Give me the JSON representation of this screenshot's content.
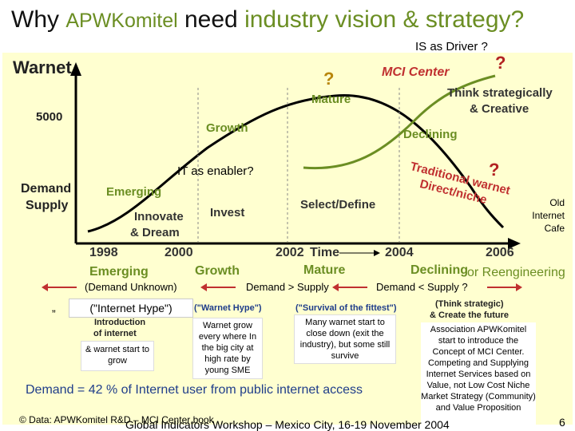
{
  "title": {
    "part1": "Why ",
    "part2": "APWKomitel",
    "part3": " need ",
    "part4": "industry vision & strategy?"
  },
  "top_right": "IS as Driver ?",
  "question_marks": [
    "?",
    "?",
    "?"
  ],
  "chart": {
    "y_title": "Warnet",
    "y_value": "5000",
    "y_axis_label1": "Demand",
    "y_axis_label2": "Supply",
    "x_ticks": [
      "1998",
      "2000",
      "2002",
      "2004",
      "2006"
    ],
    "x_label": "Time",
    "mci_center": "MCI Center",
    "mature": "Mature",
    "growth": "Growth",
    "emerging": "Emerging",
    "declining": "Declining",
    "think1": "Think strategically",
    "think2": "& Creative",
    "traditional1": "Traditional warnet",
    "traditional2": "Direct/niche",
    "innovate1": "Innovate",
    "innovate2": "& Dream",
    "invest": "Invest",
    "select_define": "Select/Define",
    "it_enabler": "IT as enabler?",
    "old_cafe": [
      "Old",
      "Internet",
      "Cafe"
    ]
  },
  "stages": {
    "emerging": "Emerging",
    "growth": "Growth",
    "mature": "Mature",
    "declining": "Declining",
    "reeng": "or Reengineering",
    "demand_unknown": "(Demand Unknown)",
    "demand_gt": "Demand > Supply",
    "demand_lt": "Demand < Supply ?"
  },
  "columns": {
    "quote_mark": "„",
    "internet_hype": "(\"Internet Hype\")",
    "intro1": "Introduction",
    "intro2": "of internet",
    "warnet_hype": "(\"Warnet Hype\")",
    "survival": "(\"Survival of the fittest\")",
    "think_strategic": "(Think strategic)",
    "create_future": "& Create the future",
    "box1": "& warnet start to grow",
    "box2": "Warnet grow every where In the big city at high rate by young SME",
    "box3": "Many warnet start to close down (exit the industry), but some still survive",
    "box4": "Association APWKomitel start to introduce the Concept of MCI Center. Competing and Supplying Internet Services based on Value, not Low Cost Niche Market Strategy (Community) and Value Proposition"
  },
  "demand_stat": "Demand = 42 % of Internet user from public internet access",
  "footer": {
    "source": "© Data: APWKomitel R&D – MCI Center book",
    "workshop": "Global Indicators Workshop – Mexico City, 16-19 November 2004",
    "page": "6"
  },
  "colors": {
    "accent_green": "#6b8e23",
    "red": "#c03030",
    "blue": "#1f3d8a",
    "panel_bg": "#ffffd0"
  }
}
